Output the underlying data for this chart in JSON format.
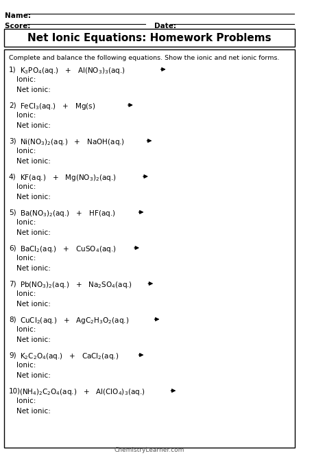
{
  "title": "Net Ionic Equations: Homework Problems",
  "instruction": "Complete and balance the following equations. Show the ionic and net ionic forms.",
  "problems": [
    {
      "num": "1)",
      "eq": "K$_3$PO$_4$(aq.)   +   Al(NO$_3$)$_3$(aq.)"
    },
    {
      "num": "2)",
      "eq": "FeCl$_3$(aq.)   +   Mg(s)"
    },
    {
      "num": "3)",
      "eq": "Ni(NO$_3$)$_2$(aq.)   +   NaOH(aq.)"
    },
    {
      "num": "4)",
      "eq": "KF(aq.)   +   Mg(NO$_3$)$_2$(aq.)"
    },
    {
      "num": "5)",
      "eq": "Ba(NO$_3$)$_2$(aq.)   +   HF(aq.)"
    },
    {
      "num": "6)",
      "eq": "BaCl$_2$(aq.)   +   CuSO$_4$(aq.)"
    },
    {
      "num": "7)",
      "eq": "Pb(NO$_3$)$_2$(aq.)   +   Na$_2$SO$_4$(aq.)"
    },
    {
      "num": "8)",
      "eq": "CuCl$_2$(aq.)   +   AgC$_2$H$_3$O$_2$(aq.)"
    },
    {
      "num": "9)",
      "eq": "K$_2$C$_2$O$_4$(aq.)   +   CaCl$_2$(aq.)"
    },
    {
      "num": "10)",
      "eq": "(NH$_4$)$_2$C$_2$O$_4$(aq.)   +   Al(ClO$_4$)$_3$(aq.)"
    }
  ],
  "bg_color": "#ffffff",
  "text_color": "#000000",
  "border_color": "#000000",
  "footer": "ChemistryLearner.com"
}
